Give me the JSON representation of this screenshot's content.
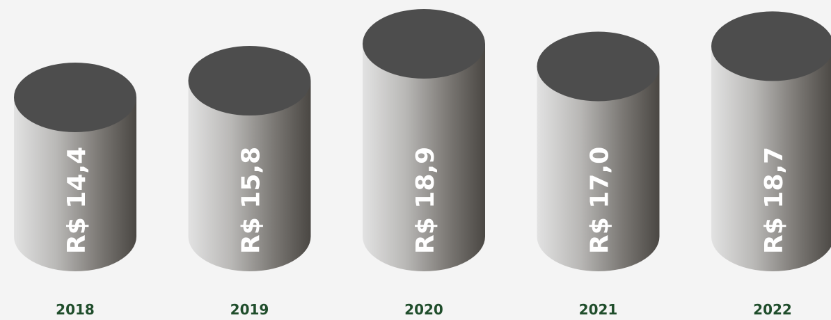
{
  "chart_data": {
    "type": "bar",
    "categories": [
      "2018",
      "2019",
      "2020",
      "2021",
      "2022"
    ],
    "values": [
      14.4,
      15.8,
      18.9,
      17.0,
      18.7
    ],
    "value_labels": [
      "R$ 14,4",
      "R$ 15,8",
      "R$ 18,9",
      "R$ 17,0",
      "R$ 18,7"
    ],
    "title": "",
    "xlabel": "",
    "ylabel": "",
    "ylim": [
      0,
      18.9
    ],
    "grid": false,
    "bar_style": "cylinder",
    "colors": {
      "top": "#4d4d4d",
      "body_light": "#e2e2e2",
      "body_dark": "#4a4743",
      "value_text": "#ffffff",
      "category_text": "#1f4d2b",
      "background": "#f4f4f4"
    }
  }
}
